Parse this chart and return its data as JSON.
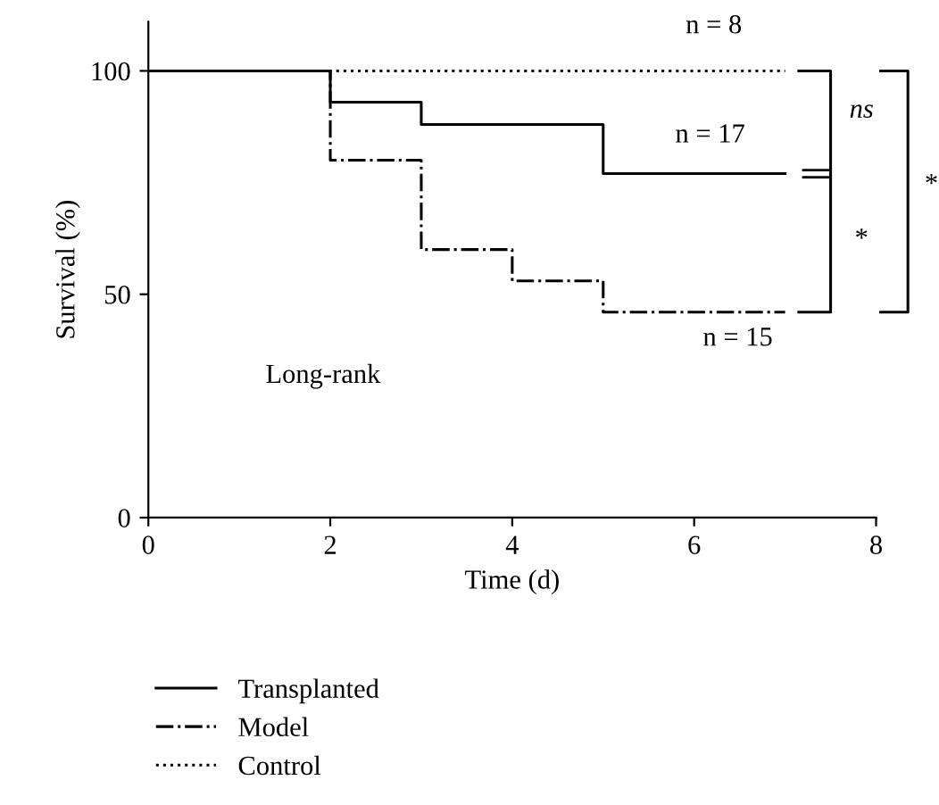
{
  "chart_data": {
    "type": "step",
    "xlabel": "Time (d)",
    "ylabel": "Survival (%)",
    "xlim": [
      0,
      8
    ],
    "xticks": [
      0,
      2,
      4,
      6,
      8
    ],
    "ylim": [
      0,
      111
    ],
    "yticks": [
      0,
      50,
      100
    ],
    "grid": false,
    "legend": "bottom",
    "series": [
      {
        "name": "Transplanted",
        "color": "#000000",
        "line_style": "solid",
        "x": [
          0,
          2,
          3,
          5,
          7
        ],
        "values": [
          100,
          93,
          88,
          77,
          77
        ]
      },
      {
        "name": "Model",
        "color": "#000000",
        "line_style": "dashdot",
        "x": [
          0,
          2,
          3,
          4,
          5,
          7
        ],
        "values": [
          100,
          80,
          60,
          53,
          46,
          46
        ]
      },
      {
        "name": "Control",
        "color": "#000000",
        "line_style": "dotted",
        "x": [
          0,
          7
        ],
        "values": [
          100,
          100
        ]
      }
    ],
    "annotations": [
      "n = 8",
      "n = 17",
      "n = 15",
      "ns",
      "*",
      "*",
      "Long-rank"
    ]
  }
}
